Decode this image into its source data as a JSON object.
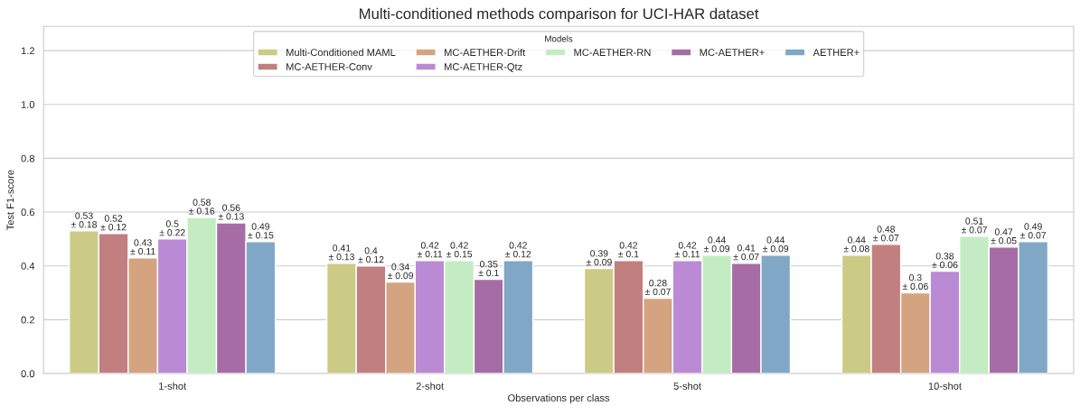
{
  "chart_data": {
    "type": "bar",
    "title": "Multi-conditioned methods comparison for UCI-HAR dataset",
    "xlabel": "Observations per class",
    "ylabel": "Test F1-score",
    "legend_title": "Models",
    "legend": "top",
    "grid": "y",
    "categories": [
      "1-shot",
      "2-shot",
      "5-shot",
      "10-shot"
    ],
    "ylim": [
      0,
      1.29
    ],
    "yticks": [
      {
        "value": 0,
        "label": "0.0"
      },
      0.2,
      0.4,
      0.6,
      0.8,
      {
        "value": 1,
        "label": "1.0"
      },
      1.2
    ],
    "series": [
      {
        "name": "Multi-Conditioned MAML",
        "color": "#cbcb85",
        "values": [
          0.53,
          0.41,
          0.39,
          0.44
        ],
        "value_labels": [
          "0.53\n± 0.18",
          "0.41\n± 0.13",
          "0.39\n± 0.09",
          "0.44\n± 0.08"
        ]
      },
      {
        "name": "MC-AETHER-Conv",
        "color": "#c27f7f",
        "values": [
          0.52,
          0.4,
          0.42,
          0.48
        ],
        "value_labels": [
          "0.52\n± 0.12",
          "0.4\n± 0.12",
          "0.42\n± 0.1",
          "0.48\n± 0.07"
        ]
      },
      {
        "name": "MC-AETHER-Drift",
        "color": "#d4a481",
        "values": [
          0.43,
          0.34,
          0.28,
          0.3
        ],
        "value_labels": [
          "0.43\n± 0.11",
          "0.34\n± 0.09",
          "0.28\n± 0.07",
          "0.3\n± 0.06"
        ]
      },
      {
        "name": "MC-AETHER-Qtz",
        "color": "#bb8ad4",
        "values": [
          0.5,
          0.42,
          0.42,
          0.38
        ],
        "value_labels": [
          "0.5\n± 0.22",
          "0.42\n± 0.11",
          "0.42\n± 0.11",
          "0.38\n± 0.06"
        ]
      },
      {
        "name": "MC-AETHER-RN",
        "color": "#c3ecc3",
        "values": [
          0.58,
          0.42,
          0.44,
          0.51
        ],
        "value_labels": [
          "0.58\n± 0.16",
          "0.42\n± 0.15",
          "0.44\n± 0.09",
          "0.51\n± 0.07"
        ]
      },
      {
        "name": "MC-AETHER+",
        "color": "#a66ca6",
        "values": [
          0.56,
          0.35,
          0.41,
          0.47
        ],
        "value_labels": [
          "0.56\n± 0.13",
          "0.35\n± 0.1",
          "0.41\n± 0.07",
          "0.47\n± 0.05"
        ]
      },
      {
        "name": "AETHER+",
        "color": "#80a8c6",
        "values": [
          0.49,
          0.42,
          0.44,
          0.49
        ],
        "value_labels": [
          "0.49\n± 0.15",
          "0.42\n± 0.12",
          "0.44\n± 0.09",
          "0.49\n± 0.07"
        ]
      }
    ]
  }
}
